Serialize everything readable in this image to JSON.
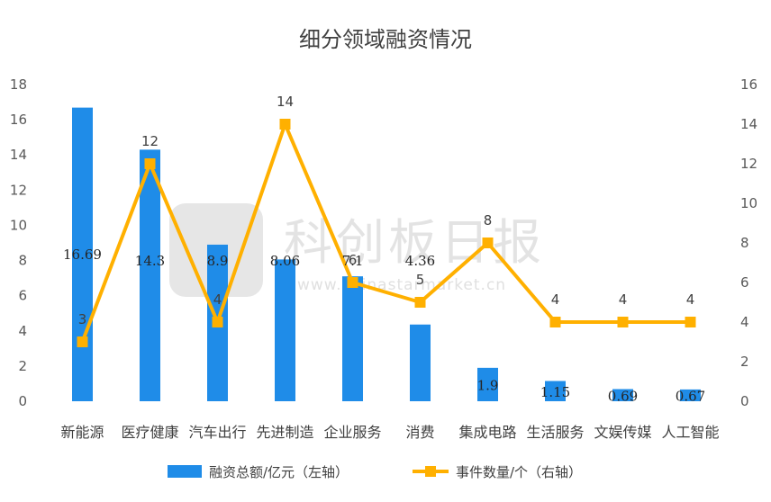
{
  "chart_data": {
    "type": "bar",
    "title": "细分领域融资情况",
    "categories": [
      "新能源",
      "医疗健康",
      "汽车出行",
      "先进制造",
      "企业服务",
      "消费",
      "集成电路",
      "生活服务",
      "文娱传媒",
      "人工智能"
    ],
    "series": [
      {
        "name": "融资总额/亿元（左轴）",
        "type": "bar",
        "axis": "left",
        "color": "#1f8ce8",
        "values": [
          16.69,
          14.3,
          8.9,
          8.06,
          7.1,
          4.36,
          1.9,
          1.15,
          0.69,
          0.67
        ]
      },
      {
        "name": "事件数量/个（右轴）",
        "type": "line",
        "axis": "right",
        "color": "#ffb000",
        "values": [
          3,
          12,
          4,
          14,
          6,
          5,
          8,
          4,
          4,
          4
        ]
      }
    ],
    "y_left": {
      "min": 0,
      "max": 18,
      "step": 2
    },
    "y_right": {
      "min": 0,
      "max": 16,
      "step": 2
    },
    "grid": false,
    "legend_position": "bottom"
  },
  "watermark": {
    "text": "科创板日报",
    "url": "www.chinastarmarket.cn"
  }
}
